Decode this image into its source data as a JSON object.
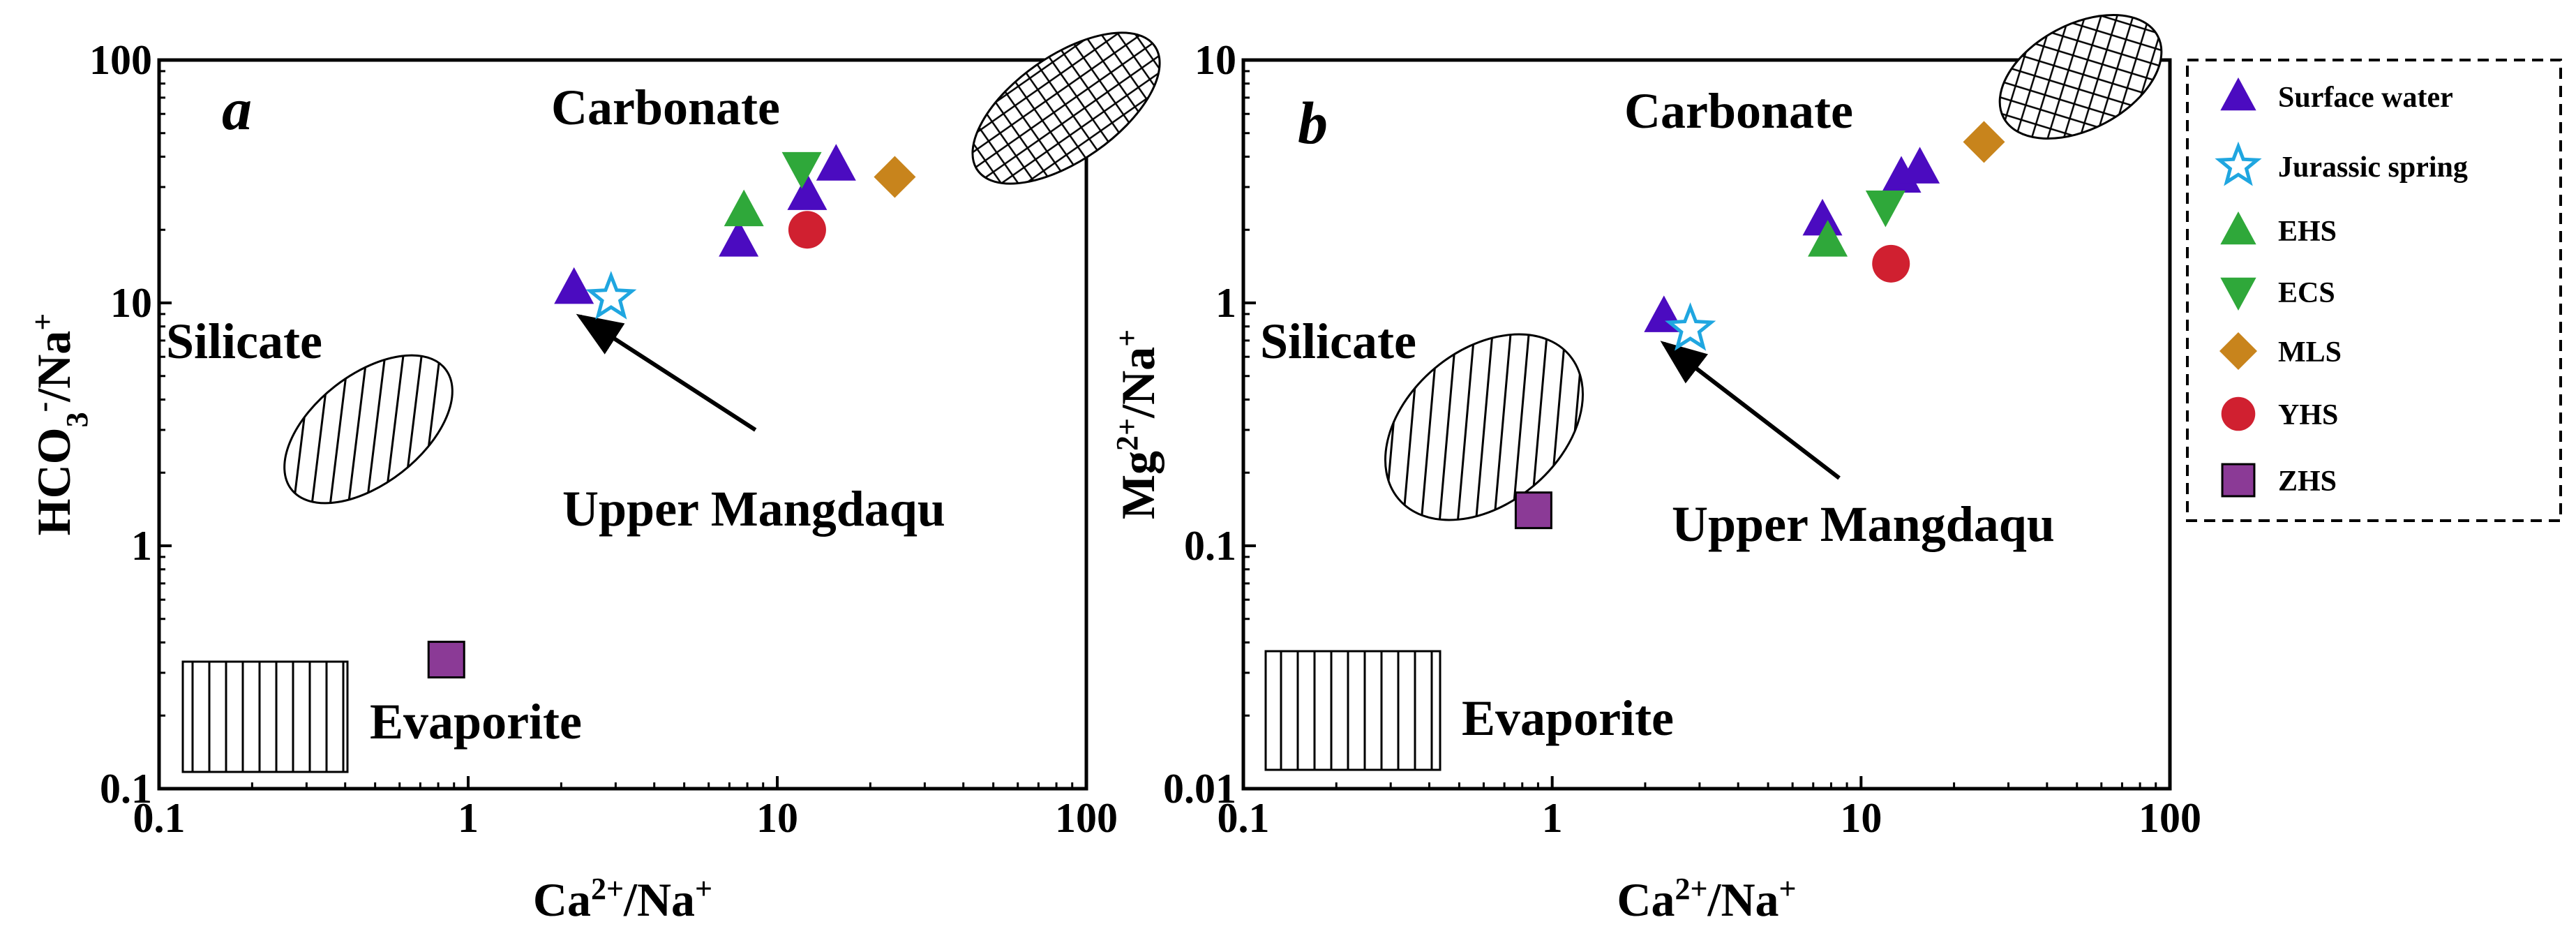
{
  "chart_data": [
    {
      "panel": "a",
      "type": "scatter",
      "xscale": "log",
      "yscale": "log",
      "xlim": [
        0.1,
        100
      ],
      "ylim": [
        0.1,
        100
      ],
      "xlabel": {
        "main": "Ca",
        "sup1": "2+",
        "mid": "/Na",
        "sup2": "+"
      },
      "ylabel": {
        "main": "HCO",
        "sub": "3",
        "sup1": "-",
        "mid": "/Na",
        "sup2": "+"
      },
      "xticks": [
        {
          "v": 0.1,
          "t": "0.1"
        },
        {
          "v": 1,
          "t": "1"
        },
        {
          "v": 10,
          "t": "10"
        },
        {
          "v": 100,
          "t": "100"
        }
      ],
      "yticks": [
        {
          "v": 0.1,
          "t": "0.1"
        },
        {
          "v": 1,
          "t": "1"
        },
        {
          "v": 10,
          "t": "10"
        },
        {
          "v": 100,
          "t": "100"
        }
      ],
      "regions": {
        "carbonate": "Carbonate",
        "silicate": "Silicate",
        "evaporite": "Evaporite"
      },
      "annotation": {
        "text": "Upper Mangdaqu",
        "target": [
          2.3,
          8.8
        ],
        "from": [
          8.5,
          3.0
        ]
      },
      "series": [
        {
          "name": "Surface water",
          "points": [
            [
              2.2,
              11.5
            ],
            [
              7.5,
              18
            ],
            [
              12.5,
              28
            ],
            [
              15.5,
              37
            ]
          ]
        },
        {
          "name": "Jurassic spring",
          "points": [
            [
              2.9,
              10.5
            ]
          ]
        },
        {
          "name": "EHS",
          "points": [
            [
              7.8,
              24
            ]
          ]
        },
        {
          "name": "ECS",
          "points": [
            [
              12,
              36
            ]
          ]
        },
        {
          "name": "MLS",
          "points": [
            [
              24,
              33
            ]
          ]
        },
        {
          "name": "YHS",
          "points": [
            [
              12.5,
              20
            ]
          ]
        },
        {
          "name": "ZHS",
          "points": [
            [
              0.85,
              0.34
            ]
          ]
        }
      ]
    },
    {
      "panel": "b",
      "type": "scatter",
      "xscale": "log",
      "yscale": "log",
      "xlim": [
        0.1,
        100
      ],
      "ylim": [
        0.01,
        10
      ],
      "xlabel": {
        "main": "Ca",
        "sup1": "2+",
        "mid": "/Na",
        "sup2": "+"
      },
      "ylabel": {
        "main": "Mg",
        "sup1": "2+",
        "mid": "/Na",
        "sup2": "+"
      },
      "xticks": [
        {
          "v": 0.1,
          "t": "0.1"
        },
        {
          "v": 1,
          "t": "1"
        },
        {
          "v": 10,
          "t": "10"
        },
        {
          "v": 100,
          "t": "100"
        }
      ],
      "yticks": [
        {
          "v": 0.01,
          "t": "0.01"
        },
        {
          "v": 0.1,
          "t": "0.1"
        },
        {
          "v": 1,
          "t": "1"
        },
        {
          "v": 10,
          "t": "10"
        }
      ],
      "regions": {
        "carbonate": "Carbonate",
        "silicate": "Silicate",
        "evaporite": "Evaporite"
      },
      "annotation": {
        "text": "Upper Mangdaqu",
        "target": [
          2.3,
          0.68
        ],
        "from": [
          8.5,
          0.19
        ]
      },
      "series": [
        {
          "name": "Surface water",
          "points": [
            [
              2.3,
              0.88
            ],
            [
              7.5,
              2.2
            ],
            [
              13.5,
              3.3
            ],
            [
              15.5,
              3.6
            ]
          ]
        },
        {
          "name": "Jurassic spring",
          "points": [
            [
              2.8,
              0.78
            ]
          ]
        },
        {
          "name": "EHS",
          "points": [
            [
              7.8,
              1.8
            ]
          ]
        },
        {
          "name": "ECS",
          "points": [
            [
              12,
              2.5
            ]
          ]
        },
        {
          "name": "MLS",
          "points": [
            [
              25,
              4.6
            ]
          ]
        },
        {
          "name": "YHS",
          "points": [
            [
              12.5,
              1.45
            ]
          ]
        },
        {
          "name": "ZHS",
          "points": [
            [
              0.87,
              0.14
            ]
          ]
        }
      ]
    }
  ],
  "legend": {
    "position": "right",
    "entries": [
      {
        "name": "Surface water",
        "marker": "triangle-up",
        "color": "#4B0BC0"
      },
      {
        "name": "Jurassic spring",
        "marker": "star",
        "color": "#1FA6E0"
      },
      {
        "name": "EHS",
        "marker": "triangle-up",
        "color": "#2FA83A"
      },
      {
        "name": "ECS",
        "marker": "triangle-down",
        "color": "#2FA83A"
      },
      {
        "name": "MLS",
        "marker": "diamond",
        "color": "#C8841C"
      },
      {
        "name": "YHS",
        "marker": "circle",
        "color": "#D02030"
      },
      {
        "name": "ZHS",
        "marker": "square",
        "color": "#8B3A96"
      }
    ]
  }
}
